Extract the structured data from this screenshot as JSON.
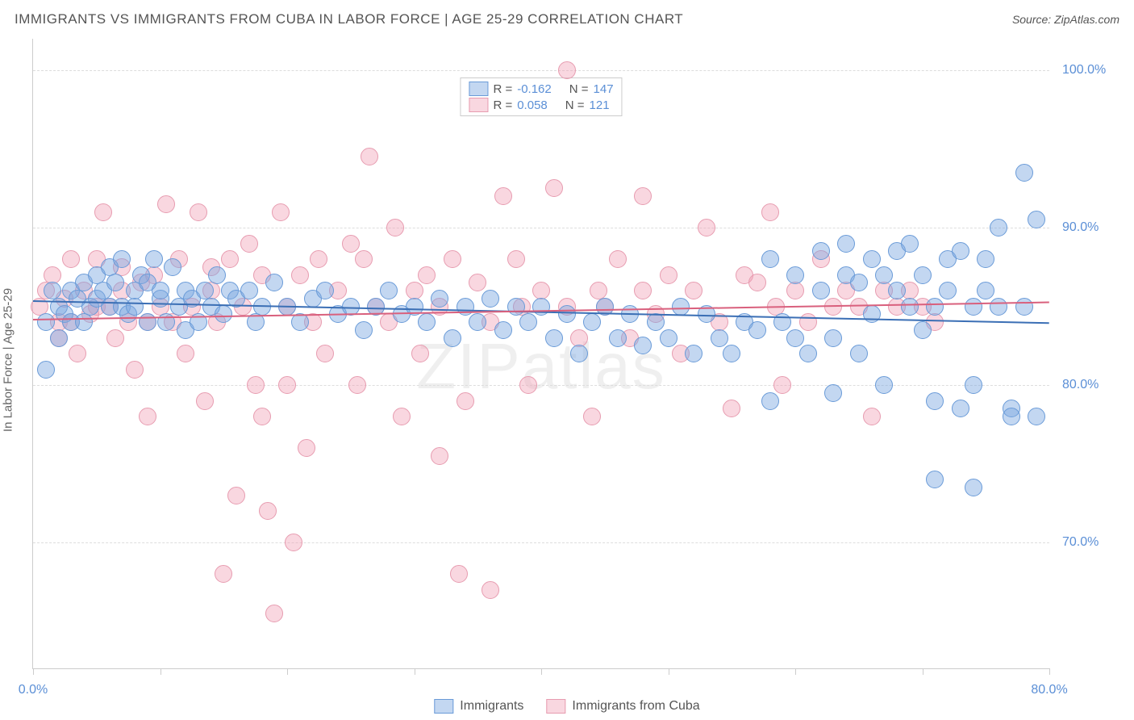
{
  "title": "IMMIGRANTS VS IMMIGRANTS FROM CUBA IN LABOR FORCE | AGE 25-29 CORRELATION CHART",
  "source": "Source: ZipAtlas.com",
  "ylabel": "In Labor Force | Age 25-29",
  "watermark": "ZIPatlas",
  "chart": {
    "type": "scatter",
    "xlim": [
      0,
      80
    ],
    "ylim": [
      62,
      102
    ],
    "xtick_labels": [
      {
        "pos": 0,
        "label": "0.0%"
      },
      {
        "pos": 80,
        "label": "80.0%"
      }
    ],
    "xtick_marks": [
      0,
      10,
      20,
      30,
      40,
      50,
      60,
      70,
      80
    ],
    "ytick_labels": [
      {
        "pos": 70,
        "label": "70.0%"
      },
      {
        "pos": 80,
        "label": "80.0%"
      },
      {
        "pos": 90,
        "label": "90.0%"
      },
      {
        "pos": 100,
        "label": "100.0%"
      }
    ],
    "grid_color": "#dddddd",
    "background_color": "#ffffff",
    "marker_radius": 10,
    "series": [
      {
        "name": "Immigrants",
        "fill": "rgba(122,167,224,0.45)",
        "stroke": "#6a9bd8",
        "trend_color": "#3b6fb5",
        "R": "-0.162",
        "N": "147",
        "trend": {
          "y_at_x0": 85.4,
          "y_at_xmax": 84.0
        },
        "points": [
          [
            1,
            81
          ],
          [
            1,
            84
          ],
          [
            1.5,
            86
          ],
          [
            2,
            85
          ],
          [
            2,
            83
          ],
          [
            2.5,
            84.5
          ],
          [
            3,
            86
          ],
          [
            3,
            84
          ],
          [
            3.5,
            85.5
          ],
          [
            4,
            86.5
          ],
          [
            4,
            84
          ],
          [
            4.5,
            85
          ],
          [
            5,
            87
          ],
          [
            5,
            85.5
          ],
          [
            5.5,
            86
          ],
          [
            6,
            85
          ],
          [
            6,
            87.5
          ],
          [
            6.5,
            86.5
          ],
          [
            7,
            85
          ],
          [
            7,
            88
          ],
          [
            7.5,
            84.5
          ],
          [
            8,
            86
          ],
          [
            8,
            85
          ],
          [
            8.5,
            87
          ],
          [
            9,
            84
          ],
          [
            9,
            86.5
          ],
          [
            9.5,
            88
          ],
          [
            10,
            85.5
          ],
          [
            10,
            86
          ],
          [
            10.5,
            84
          ],
          [
            11,
            87.5
          ],
          [
            11.5,
            85
          ],
          [
            12,
            86
          ],
          [
            12,
            83.5
          ],
          [
            12.5,
            85.5
          ],
          [
            13,
            84
          ],
          [
            13.5,
            86
          ],
          [
            14,
            85
          ],
          [
            14.5,
            87
          ],
          [
            15,
            84.5
          ],
          [
            15.5,
            86
          ],
          [
            16,
            85.5
          ],
          [
            17,
            86
          ],
          [
            17.5,
            84
          ],
          [
            18,
            85
          ],
          [
            19,
            86.5
          ],
          [
            20,
            85
          ],
          [
            21,
            84
          ],
          [
            22,
            85.5
          ],
          [
            23,
            86
          ],
          [
            24,
            84.5
          ],
          [
            25,
            85
          ],
          [
            26,
            83.5
          ],
          [
            27,
            85
          ],
          [
            28,
            86
          ],
          [
            29,
            84.5
          ],
          [
            30,
            85
          ],
          [
            31,
            84
          ],
          [
            32,
            85.5
          ],
          [
            33,
            83
          ],
          [
            34,
            85
          ],
          [
            35,
            84
          ],
          [
            36,
            85.5
          ],
          [
            37,
            83.5
          ],
          [
            38,
            85
          ],
          [
            39,
            84
          ],
          [
            40,
            85
          ],
          [
            41,
            83
          ],
          [
            42,
            84.5
          ],
          [
            43,
            82
          ],
          [
            44,
            84
          ],
          [
            45,
            85
          ],
          [
            46,
            83
          ],
          [
            47,
            84.5
          ],
          [
            48,
            82.5
          ],
          [
            49,
            84
          ],
          [
            50,
            83
          ],
          [
            51,
            85
          ],
          [
            52,
            82
          ],
          [
            53,
            84.5
          ],
          [
            54,
            83
          ],
          [
            55,
            82
          ],
          [
            56,
            84
          ],
          [
            57,
            83.5
          ],
          [
            58,
            79
          ],
          [
            58,
            88
          ],
          [
            59,
            84
          ],
          [
            60,
            83
          ],
          [
            60,
            87
          ],
          [
            61,
            82
          ],
          [
            62,
            86
          ],
          [
            62,
            88.5
          ],
          [
            63,
            83
          ],
          [
            63,
            79.5
          ],
          [
            64,
            87
          ],
          [
            64,
            89
          ],
          [
            65,
            82
          ],
          [
            65,
            86.5
          ],
          [
            66,
            88
          ],
          [
            66,
            84.5
          ],
          [
            67,
            87
          ],
          [
            67,
            80
          ],
          [
            68,
            86
          ],
          [
            68,
            88.5
          ],
          [
            69,
            85
          ],
          [
            69,
            89
          ],
          [
            70,
            83.5
          ],
          [
            70,
            87
          ],
          [
            71,
            85
          ],
          [
            71,
            79
          ],
          [
            71,
            74
          ],
          [
            72,
            88
          ],
          [
            72,
            86
          ],
          [
            73,
            78.5
          ],
          [
            73,
            88.5
          ],
          [
            74,
            85
          ],
          [
            74,
            80
          ],
          [
            74,
            73.5
          ],
          [
            75,
            88
          ],
          [
            75,
            86
          ],
          [
            76,
            85
          ],
          [
            76,
            90
          ],
          [
            77,
            78.5
          ],
          [
            77,
            78
          ],
          [
            78,
            93.5
          ],
          [
            78,
            85
          ],
          [
            79,
            90.5
          ],
          [
            79,
            78
          ]
        ]
      },
      {
        "name": "Immigrants from Cuba",
        "fill": "rgba(240,160,180,0.42)",
        "stroke": "#e79cb0",
        "trend_color": "#d9607d",
        "R": "0.058",
        "N": "121",
        "trend": {
          "y_at_x0": 84.2,
          "y_at_xmax": 85.3
        },
        "points": [
          [
            0.5,
            85
          ],
          [
            1,
            86
          ],
          [
            1.5,
            87
          ],
          [
            2,
            84
          ],
          [
            2,
            83
          ],
          [
            2.5,
            85.5
          ],
          [
            3,
            88
          ],
          [
            3,
            84
          ],
          [
            3.5,
            82
          ],
          [
            4,
            86
          ],
          [
            4.5,
            84.5
          ],
          [
            5,
            85
          ],
          [
            5,
            88
          ],
          [
            5.5,
            91
          ],
          [
            6,
            85
          ],
          [
            6.5,
            83
          ],
          [
            7,
            86
          ],
          [
            7,
            87.5
          ],
          [
            7.5,
            84
          ],
          [
            8,
            81
          ],
          [
            8.5,
            86.5
          ],
          [
            9,
            84
          ],
          [
            9,
            78
          ],
          [
            9.5,
            87
          ],
          [
            10,
            85
          ],
          [
            10.5,
            91.5
          ],
          [
            11,
            84
          ],
          [
            11.5,
            88
          ],
          [
            12,
            82
          ],
          [
            12.5,
            85
          ],
          [
            13,
            91
          ],
          [
            13.5,
            79
          ],
          [
            14,
            86
          ],
          [
            14,
            87.5
          ],
          [
            14.5,
            84
          ],
          [
            15,
            68
          ],
          [
            15.5,
            88
          ],
          [
            16,
            73
          ],
          [
            16.5,
            85
          ],
          [
            17,
            89
          ],
          [
            17.5,
            80
          ],
          [
            18,
            87
          ],
          [
            18,
            78
          ],
          [
            18.5,
            72
          ],
          [
            19,
            65.5
          ],
          [
            19.5,
            91
          ],
          [
            20,
            85
          ],
          [
            20,
            80
          ],
          [
            20.5,
            70
          ],
          [
            21,
            87
          ],
          [
            21.5,
            76
          ],
          [
            22,
            84
          ],
          [
            22.5,
            88
          ],
          [
            23,
            82
          ],
          [
            24,
            86
          ],
          [
            25,
            89
          ],
          [
            25.5,
            80
          ],
          [
            26,
            88
          ],
          [
            26.5,
            94.5
          ],
          [
            27,
            85
          ],
          [
            28,
            84
          ],
          [
            28.5,
            90
          ],
          [
            29,
            78
          ],
          [
            30,
            86
          ],
          [
            30.5,
            82
          ],
          [
            31,
            87
          ],
          [
            32,
            85
          ],
          [
            32,
            75.5
          ],
          [
            33,
            88
          ],
          [
            33.5,
            68
          ],
          [
            34,
            79
          ],
          [
            35,
            86.5
          ],
          [
            36,
            84
          ],
          [
            36,
            67
          ],
          [
            37,
            92
          ],
          [
            38,
            88
          ],
          [
            38.5,
            85
          ],
          [
            39,
            80
          ],
          [
            40,
            86
          ],
          [
            41,
            92.5
          ],
          [
            42,
            85
          ],
          [
            42,
            100
          ],
          [
            43,
            83
          ],
          [
            44,
            78
          ],
          [
            44.5,
            86
          ],
          [
            45,
            85
          ],
          [
            46,
            88
          ],
          [
            47,
            83
          ],
          [
            48,
            86
          ],
          [
            48,
            92
          ],
          [
            49,
            84.5
          ],
          [
            50,
            87
          ],
          [
            51,
            82
          ],
          [
            52,
            86
          ],
          [
            53,
            90
          ],
          [
            54,
            84
          ],
          [
            55,
            78.5
          ],
          [
            56,
            87
          ],
          [
            57,
            86.5
          ],
          [
            58,
            91
          ],
          [
            58.5,
            85
          ],
          [
            59,
            80
          ],
          [
            60,
            86
          ],
          [
            61,
            84
          ],
          [
            62,
            88
          ],
          [
            63,
            85
          ],
          [
            64,
            86
          ],
          [
            65,
            85
          ],
          [
            66,
            78
          ],
          [
            67,
            86
          ],
          [
            68,
            85
          ],
          [
            69,
            86
          ],
          [
            70,
            85
          ],
          [
            71,
            84
          ]
        ]
      }
    ]
  },
  "legend": {
    "swatch_border": {
      "blue": "#6a9bd8",
      "pink": "#e79cb0"
    },
    "swatch_fill": {
      "blue": "rgba(122,167,224,0.45)",
      "pink": "rgba(240,160,180,0.42)"
    }
  },
  "bottom_legend": [
    {
      "label": "Immigrants",
      "fill": "rgba(122,167,224,0.45)",
      "stroke": "#6a9bd8"
    },
    {
      "label": "Immigrants from Cuba",
      "fill": "rgba(240,160,180,0.42)",
      "stroke": "#e79cb0"
    }
  ],
  "labels": {
    "R_prefix": "R = ",
    "N_prefix": "N = "
  }
}
